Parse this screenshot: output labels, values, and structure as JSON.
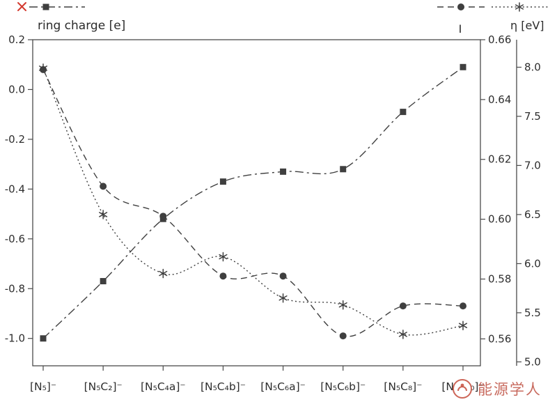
{
  "figure": {
    "watermark_text": "能源学人"
  },
  "chart_data": {
    "type": "line",
    "title": "",
    "categories": [
      "[N₅]⁻",
      "[N₅C₂]⁻",
      "[N₅C₄a]⁻",
      "[N₅C₄b]⁻",
      "[N₅C₆a]⁻",
      "[N₅C₆b]⁻",
      "[N₅C₈]⁻",
      "[N₅C₁₀]⁻"
    ],
    "axes": {
      "left": {
        "title": "ring charge [e]",
        "min": -1.11,
        "max": 0.2,
        "ticks": [
          "0.2",
          "0.0",
          "-0.2",
          "-0.4",
          "-0.6",
          "-0.8",
          "-1.0"
        ],
        "tick_values": [
          0.2,
          0.0,
          -0.2,
          -0.4,
          -0.6,
          -0.8,
          -1.0
        ]
      },
      "right_inner": {
        "title": "I",
        "min": 0.551,
        "max": 0.66,
        "ticks": [
          "0.66",
          "0.64",
          "0.62",
          "0.60",
          "0.58",
          "0.56"
        ],
        "tick_values": [
          0.66,
          0.64,
          0.62,
          0.6,
          0.58,
          0.56
        ]
      },
      "right_outer": {
        "title": "η [eV]",
        "min": 4.96,
        "max": 8.28,
        "ticks": [
          "8.0",
          "7.5",
          "7.0",
          "6.5",
          "6.0",
          "5.5",
          "5.0"
        ],
        "tick_values": [
          8.0,
          7.5,
          7.0,
          6.5,
          6.0,
          5.5,
          5.0
        ]
      }
    },
    "series": [
      {
        "name": "ring charge",
        "axis": "left",
        "marker": "square",
        "line": "dashdot",
        "values": [
          -1.0,
          -0.77,
          -0.52,
          -0.37,
          -0.33,
          -0.32,
          -0.09,
          0.09
        ]
      },
      {
        "name": "I",
        "axis": "right_inner",
        "marker": "circle",
        "line": "dashed",
        "values": [
          0.65,
          0.611,
          0.601,
          0.581,
          0.581,
          0.561,
          0.571,
          0.571
        ]
      },
      {
        "name": "η",
        "axis": "right_outer",
        "marker": "asterisk",
        "line": "dotted",
        "values": [
          7.99,
          6.5,
          5.9,
          6.07,
          5.65,
          5.58,
          5.28,
          5.37
        ]
      }
    ],
    "legend": {
      "position": "top",
      "items": [
        {
          "marker": "square",
          "line": "dashdot"
        },
        {
          "marker": "circle",
          "line": "dashed"
        },
        {
          "marker": "asterisk",
          "line": "dotted"
        }
      ]
    },
    "grid": false,
    "colors": {
      "line": "#3f3f3f",
      "axis": "#4a4a4a",
      "text": "#2e2e2e",
      "red_accent": "#d43a2f",
      "watermark": "#c0554a"
    }
  }
}
